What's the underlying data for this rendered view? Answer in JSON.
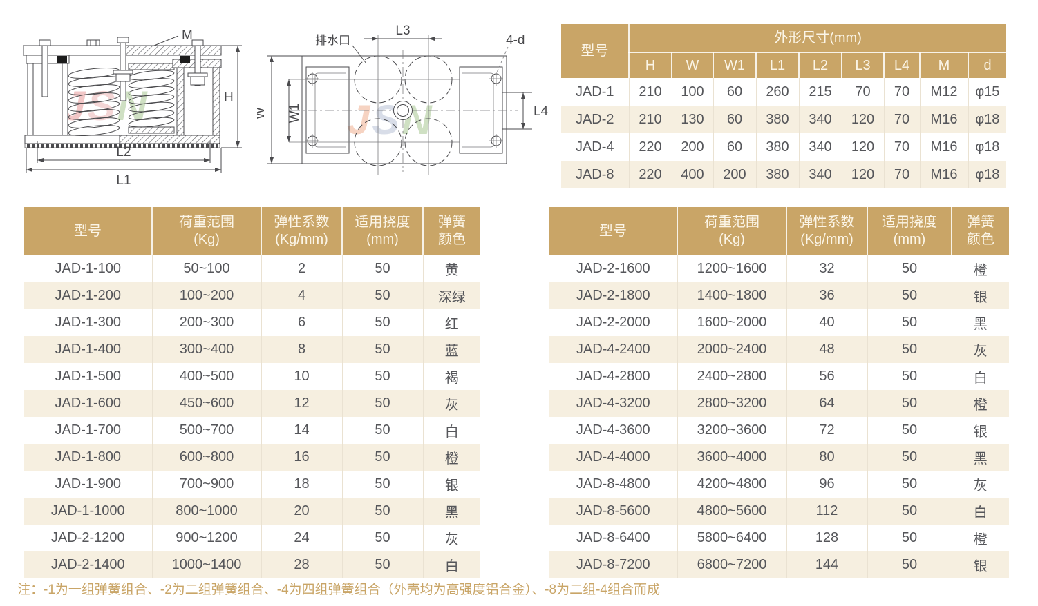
{
  "colors": {
    "header_bg": "#C9A567",
    "header_text": "#FBF5E7",
    "row_alt": "#F6EFE0",
    "body_text": "#55565A",
    "note_text": "#C9A567",
    "watermark_pink": "#E89B9B",
    "watermark_rose": "#EBB4B4",
    "watermark_green": "#A9C893",
    "watermark_salmon": "#F0B091",
    "watermark_blue": "#B9C3D6"
  },
  "drawings": {
    "side_view": {
      "labels": {
        "m": "M",
        "h": "H",
        "l2": "L2",
        "l1": "L1"
      },
      "watermark_letters": [
        "J",
        "S",
        "N"
      ]
    },
    "top_view": {
      "labels": {
        "drain": "排水口",
        "l3": "L3",
        "four_d": "4-d",
        "w": "W",
        "w1": "W1",
        "l4": "L4"
      },
      "watermark_letters": [
        "J",
        "S",
        "N"
      ]
    }
  },
  "dim_table": {
    "col_model": "型号",
    "group_header": "外形尺寸(mm)",
    "columns": [
      "H",
      "W",
      "W1",
      "L1",
      "L2",
      "L3",
      "L4",
      "M",
      "d"
    ],
    "rows": [
      [
        "JAD-1",
        "210",
        "100",
        "60",
        "260",
        "215",
        "70",
        "70",
        "M12",
        "φ15"
      ],
      [
        "JAD-2",
        "210",
        "130",
        "60",
        "380",
        "340",
        "120",
        "70",
        "M16",
        "φ18"
      ],
      [
        "JAD-4",
        "220",
        "200",
        "60",
        "380",
        "340",
        "120",
        "70",
        "M16",
        "φ18"
      ],
      [
        "JAD-8",
        "220",
        "400",
        "200",
        "380",
        "340",
        "120",
        "70",
        "M16",
        "φ18"
      ]
    ]
  },
  "spec_headers": [
    [
      "型号",
      ""
    ],
    [
      "荷重范围",
      "(Kg)"
    ],
    [
      "弹性系数",
      "(Kg/mm)"
    ],
    [
      "适用挠度",
      "(mm)"
    ],
    [
      "弹簧",
      "颜色"
    ]
  ],
  "spec_left": {
    "rows": [
      [
        "JAD-1-100",
        "50~100",
        "2",
        "50",
        "黄"
      ],
      [
        "JAD-1-200",
        "100~200",
        "4",
        "50",
        "深绿"
      ],
      [
        "JAD-1-300",
        "200~300",
        "6",
        "50",
        "红"
      ],
      [
        "JAD-1-400",
        "300~400",
        "8",
        "50",
        "蓝"
      ],
      [
        "JAD-1-500",
        "400~500",
        "10",
        "50",
        "褐"
      ],
      [
        "JAD-1-600",
        "450~600",
        "12",
        "50",
        "灰"
      ],
      [
        "JAD-1-700",
        "500~700",
        "14",
        "50",
        "白"
      ],
      [
        "JAD-1-800",
        "600~800",
        "16",
        "50",
        "橙"
      ],
      [
        "JAD-1-900",
        "700~900",
        "18",
        "50",
        "银"
      ],
      [
        "JAD-1-1000",
        "800~1000",
        "20",
        "50",
        "黑"
      ],
      [
        "JAD-2-1200",
        "900~1200",
        "24",
        "50",
        "灰"
      ],
      [
        "JAD-2-1400",
        "1000~1400",
        "28",
        "50",
        "白"
      ]
    ]
  },
  "spec_right": {
    "rows": [
      [
        "JAD-2-1600",
        "1200~1600",
        "32",
        "50",
        "橙"
      ],
      [
        "JAD-2-1800",
        "1400~1800",
        "36",
        "50",
        "银"
      ],
      [
        "JAD-2-2000",
        "1600~2000",
        "40",
        "50",
        "黑"
      ],
      [
        "JAD-4-2400",
        "2000~2400",
        "48",
        "50",
        "灰"
      ],
      [
        "JAD-4-2800",
        "2400~2800",
        "56",
        "50",
        "白"
      ],
      [
        "JAD-4-3200",
        "2800~3200",
        "64",
        "50",
        "橙"
      ],
      [
        "JAD-4-3600",
        "3200~3600",
        "72",
        "50",
        "银"
      ],
      [
        "JAD-4-4000",
        "3600~4000",
        "80",
        "50",
        "黑"
      ],
      [
        "JAD-8-4800",
        "4200~4800",
        "96",
        "50",
        "灰"
      ],
      [
        "JAD-8-5600",
        "4800~5600",
        "112",
        "50",
        "白"
      ],
      [
        "JAD-8-6400",
        "5800~6400",
        "128",
        "50",
        "橙"
      ],
      [
        "JAD-8-7200",
        "6800~7200",
        "144",
        "50",
        "银"
      ]
    ]
  },
  "note": "注：-1为一组弹簧组合、-2为二组弹簧组合、-4为四组弹簧组合（外壳均为高强度铝合金）、-8为二组-4组合而成"
}
